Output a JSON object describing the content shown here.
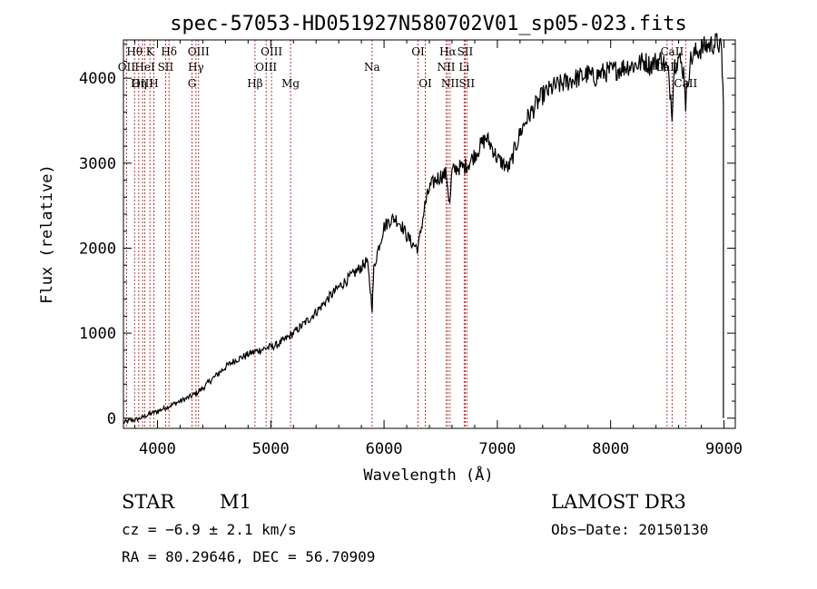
{
  "chart_data": {
    "type": "line",
    "title": "spec-57053-HD051927N580702V01_sp05-023.fits",
    "xlabel": "Wavelength (Å)",
    "ylabel": "Flux (relative)",
    "xlim": [
      3700,
      9100
    ],
    "ylim": [
      -120,
      4450
    ],
    "xticks": [
      4000,
      5000,
      6000,
      7000,
      8000,
      9000
    ],
    "yticks": [
      0,
      1000,
      2000,
      3000,
      4000
    ],
    "series": [
      {
        "name": "spectrum",
        "x": [
          3700,
          3750,
          3800,
          3850,
          3900,
          3950,
          4000,
          4050,
          4100,
          4150,
          4200,
          4250,
          4300,
          4350,
          4400,
          4450,
          4500,
          4550,
          4600,
          4650,
          4700,
          4750,
          4800,
          4850,
          4900,
          4950,
          5000,
          5050,
          5100,
          5150,
          5200,
          5250,
          5300,
          5350,
          5400,
          5450,
          5500,
          5550,
          5600,
          5650,
          5700,
          5750,
          5800,
          5850,
          5880,
          5895,
          5910,
          5940,
          5980,
          6000,
          6050,
          6100,
          6150,
          6200,
          6250,
          6300,
          6330,
          6360,
          6400,
          6450,
          6500,
          6550,
          6580,
          6600,
          6650,
          6700,
          6750,
          6800,
          6850,
          6900,
          6950,
          7000,
          7050,
          7080,
          7100,
          7120,
          7150,
          7200,
          7250,
          7300,
          7350,
          7400,
          7450,
          7500,
          7550,
          7600,
          7650,
          7700,
          7750,
          7800,
          7850,
          7900,
          7950,
          8000,
          8050,
          8100,
          8150,
          8200,
          8250,
          8300,
          8350,
          8400,
          8450,
          8500,
          8530,
          8542,
          8560,
          8600,
          8650,
          8662,
          8700,
          8750,
          8800,
          8850,
          8900,
          8950,
          8980,
          8995
        ],
        "y": [
          -50,
          -30,
          -20,
          0,
          30,
          60,
          80,
          110,
          140,
          170,
          200,
          230,
          260,
          300,
          350,
          420,
          480,
          540,
          600,
          650,
          690,
          720,
          750,
          780,
          800,
          820,
          840,
          860,
          900,
          950,
          1000,
          1060,
          1120,
          1180,
          1250,
          1320,
          1400,
          1470,
          1540,
          1600,
          1660,
          1720,
          1780,
          1850,
          1500,
          1300,
          1750,
          1950,
          2150,
          2250,
          2330,
          2350,
          2280,
          2150,
          2050,
          2000,
          2250,
          2500,
          2700,
          2800,
          2850,
          2870,
          2500,
          2900,
          2950,
          2950,
          3000,
          3100,
          3200,
          3300,
          3200,
          3050,
          3000,
          2950,
          2950,
          3000,
          3150,
          3350,
          3500,
          3600,
          3700,
          3800,
          3850,
          3900,
          3920,
          3950,
          3980,
          4000,
          4020,
          4050,
          4000,
          4050,
          4070,
          4080,
          4100,
          4120,
          4150,
          4150,
          4170,
          4200,
          4150,
          4200,
          4220,
          4100,
          3800,
          3600,
          4150,
          4250,
          4050,
          3700,
          4200,
          4300,
          4350,
          4380,
          4400,
          4420,
          4300,
          3700
        ]
      }
    ],
    "emission_lines": [
      {
        "name": "Hθ",
        "x": 3798,
        "row": 1
      },
      {
        "name": "OII",
        "x": 3727,
        "row": 2
      },
      {
        "name": "Hη",
        "x": 3835,
        "row": 3
      },
      {
        "name": "OIII",
        "x": 3869,
        "row": 3
      },
      {
        "name": "HeI",
        "x": 3889,
        "row": 2
      },
      {
        "name": "K",
        "x": 3934,
        "row": 1
      },
      {
        "name": "H",
        "x": 3968,
        "row": 3
      },
      {
        "name": "SII",
        "x": 4072,
        "row": 2
      },
      {
        "name": "Hδ",
        "x": 4102,
        "row": 1
      },
      {
        "name": "G",
        "x": 4305,
        "row": 3
      },
      {
        "name": "Hγ",
        "x": 4340,
        "row": 2
      },
      {
        "name": "OIII",
        "x": 4363,
        "row": 1
      },
      {
        "name": "Hβ",
        "x": 4861,
        "row": 3
      },
      {
        "name": "OIII",
        "x": 4959,
        "row": 2
      },
      {
        "name": "OIII",
        "x": 5007,
        "row": 1
      },
      {
        "name": "Mg",
        "x": 5175,
        "row": 3
      },
      {
        "name": "Na",
        "x": 5894,
        "row": 2
      },
      {
        "name": "OI",
        "x": 6300,
        "row": 1
      },
      {
        "name": "OI",
        "x": 6364,
        "row": 3
      },
      {
        "name": "NII",
        "x": 6548,
        "row": 2
      },
      {
        "name": "Hα",
        "x": 6563,
        "row": 1
      },
      {
        "name": "NII",
        "x": 6583,
        "row": 3
      },
      {
        "name": "Li",
        "x": 6707,
        "row": 2
      },
      {
        "name": "SII",
        "x": 6716,
        "row": 1
      },
      {
        "name": "SII",
        "x": 6731,
        "row": 3
      },
      {
        "name": "CaII",
        "x": 8498,
        "row": 2
      },
      {
        "name": "CaII",
        "x": 8542,
        "row": 1
      },
      {
        "name": "CaII",
        "x": 8662,
        "row": 3
      }
    ]
  },
  "info": {
    "object_type": "STAR",
    "subclass": "M1",
    "survey": "LAMOST DR3",
    "cz": "cz = −6.9 ± 2.1 km/s",
    "obs_date": "Obs−Date: 20150130",
    "coords": "RA =  80.29646, DEC =  56.70909"
  },
  "colors": {
    "spectrum": "#000000",
    "line_marker": "#b22222",
    "axis": "#000000",
    "background": "#ffffff"
  }
}
